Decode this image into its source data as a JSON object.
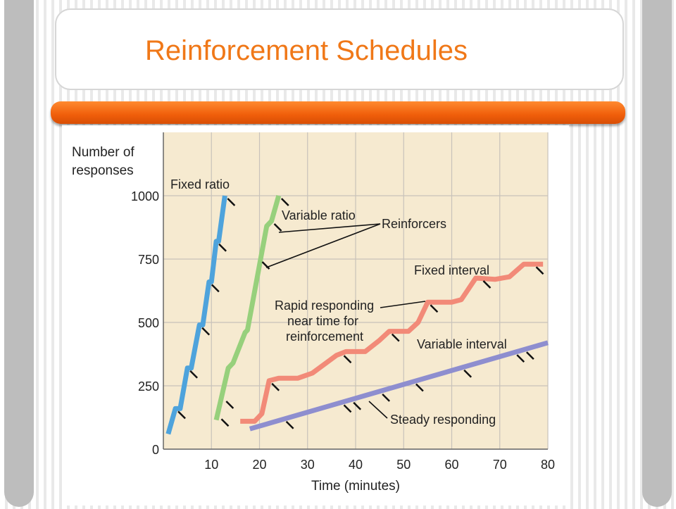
{
  "slide": {
    "title": "Reinforcement Schedules"
  },
  "colors": {
    "title": "#f07818",
    "header_bar": "#f26a12",
    "plot_bg": "#f6ead0",
    "grid": "#c8c2ba",
    "fixed_ratio": "#4ea3dc",
    "variable_ratio": "#97d07c",
    "fixed_interval": "#f28a78",
    "variable_interval": "#8e8ecf"
  },
  "chart_data": {
    "type": "line",
    "title": "",
    "xlabel": "Time (minutes)",
    "ylabel": "Number of\nresponses",
    "xlim": [
      0,
      80
    ],
    "ylim": [
      0,
      1000
    ],
    "x_ticks": [
      10,
      20,
      30,
      40,
      50,
      60,
      70,
      80
    ],
    "y_ticks": [
      0,
      250,
      500,
      750,
      1000
    ],
    "grid": true,
    "series": [
      {
        "name": "Fixed ratio",
        "color": "#4ea3dc",
        "points": [
          [
            1,
            60
          ],
          [
            2.5,
            160
          ],
          [
            3.5,
            160
          ],
          [
            5,
            320
          ],
          [
            5.8,
            320
          ],
          [
            7.5,
            490
          ],
          [
            8.2,
            490
          ],
          [
            9.5,
            660
          ],
          [
            10,
            660
          ],
          [
            11,
            820
          ],
          [
            11.5,
            820
          ],
          [
            12.8,
            1000
          ]
        ],
        "reinforcers": [
          [
            2.5,
            160
          ],
          [
            5,
            320
          ],
          [
            7.5,
            490
          ],
          [
            9.5,
            660
          ],
          [
            11,
            820
          ],
          [
            12.8,
            1000
          ]
        ]
      },
      {
        "name": "Variable ratio",
        "color": "#97d07c",
        "points": [
          [
            11,
            115
          ],
          [
            13.5,
            320
          ],
          [
            14.5,
            340
          ],
          [
            17,
            460
          ],
          [
            17.5,
            470
          ],
          [
            21.5,
            880
          ],
          [
            22.5,
            900
          ],
          [
            24,
            1000
          ]
        ],
        "reinforcers": [
          [
            11.5,
            130
          ],
          [
            12.5,
            200
          ],
          [
            20,
            750
          ],
          [
            22.5,
            900
          ],
          [
            24,
            1000
          ]
        ]
      },
      {
        "name": "Fixed interval",
        "color": "#f28a78",
        "points": [
          [
            16,
            110
          ],
          [
            19,
            110
          ],
          [
            20.5,
            140
          ],
          [
            22,
            270
          ],
          [
            24,
            280
          ],
          [
            28,
            280
          ],
          [
            31,
            300
          ],
          [
            36,
            370
          ],
          [
            38,
            385
          ],
          [
            42,
            385
          ],
          [
            45,
            430
          ],
          [
            47,
            465
          ],
          [
            51,
            465
          ],
          [
            53,
            500
          ],
          [
            55,
            580
          ],
          [
            60,
            580
          ],
          [
            62,
            590
          ],
          [
            65,
            675
          ],
          [
            69,
            670
          ],
          [
            72,
            680
          ],
          [
            75,
            730
          ],
          [
            79,
            730
          ]
        ],
        "reinforcers": [
          [
            22,
            270
          ],
          [
            37,
            380
          ],
          [
            47,
            465
          ],
          [
            55,
            580
          ],
          [
            66,
            675
          ],
          [
            77,
            730
          ]
        ]
      },
      {
        "name": "Variable interval",
        "color": "#8e8ecf",
        "points": [
          [
            18,
            80
          ],
          [
            80,
            420
          ]
        ],
        "reinforcers": [
          [
            25,
            120
          ],
          [
            37,
            185
          ],
          [
            39,
            195
          ],
          [
            45,
            228
          ],
          [
            52,
            268
          ],
          [
            62,
            323
          ],
          [
            73,
            383
          ],
          [
            75,
            394
          ]
        ]
      }
    ],
    "annotations": [
      {
        "text": "Fixed ratio"
      },
      {
        "text": "Variable ratio"
      },
      {
        "text": "Reinforcers"
      },
      {
        "text": "Fixed interval"
      },
      {
        "text": "Rapid responding"
      },
      {
        "text": "near time for"
      },
      {
        "text": "reinforcement"
      },
      {
        "text": "Variable interval"
      },
      {
        "text": "Steady responding"
      }
    ]
  }
}
